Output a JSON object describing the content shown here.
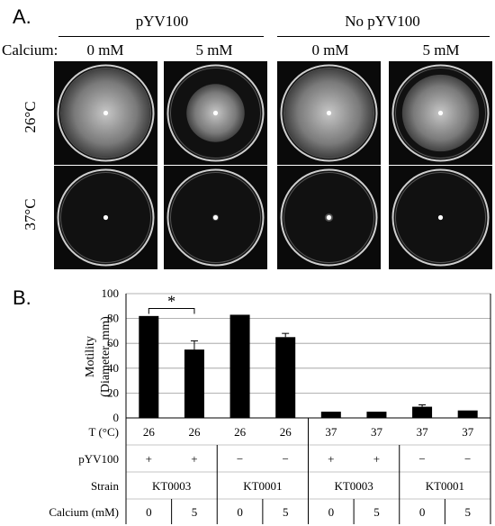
{
  "panel_a": {
    "label": "A.",
    "groups": [
      "pYV100",
      "No pYV100"
    ],
    "calcium_label": "Calcium:",
    "conc": [
      "0 mM",
      "5 mM",
      "0 mM",
      "5 mM"
    ],
    "temps": [
      "26°C",
      "37°C"
    ],
    "dish_swarm_fraction": [
      [
        0.95,
        0.62,
        0.95,
        0.82
      ],
      [
        0.05,
        0.07,
        0.09,
        0.05
      ]
    ]
  },
  "panel_b": {
    "label": "B.",
    "significance": "*"
  },
  "chart_data": {
    "type": "bar",
    "ylabel": "Motility (Diameter, mm)",
    "ylabel_lines": [
      "Motility",
      "(Diameter, mm)"
    ],
    "ylim": [
      0,
      100
    ],
    "yticks": [
      "100",
      "80",
      "60",
      "40",
      "20",
      "0"
    ],
    "grid": true,
    "values": [
      82,
      55,
      83,
      65,
      5,
      5,
      9,
      6
    ],
    "errors": [
      0,
      7,
      0,
      3,
      0,
      0,
      1.5,
      0
    ],
    "table": {
      "row_labels": [
        "T (°C)",
        "pYV100",
        "Strain",
        "Calcium (mM)"
      ],
      "temperature": [
        "26",
        "26",
        "26",
        "26",
        "37",
        "37",
        "37",
        "37"
      ],
      "pyv100": [
        "+",
        "+",
        "−",
        "−",
        "+",
        "+",
        "−",
        "−"
      ],
      "strain": [
        "KT0003",
        "KT0001",
        "KT0003",
        "KT0001"
      ],
      "calcium": [
        "0",
        "5",
        "0",
        "5",
        "0",
        "5",
        "0",
        "5"
      ]
    },
    "bar_color": "#000000"
  }
}
